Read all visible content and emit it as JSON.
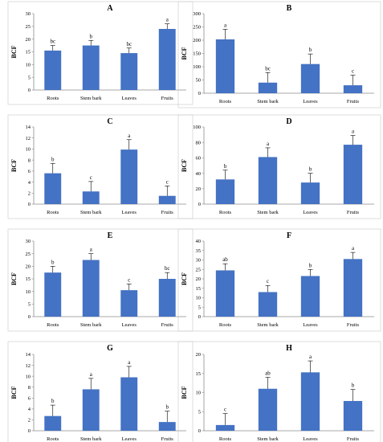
{
  "colors": {
    "bar": "#4472c4",
    "axis": "#8c8c8c",
    "frame": "#c8c8c8"
  },
  "chart_data": [
    {
      "type": "bar",
      "title": "A",
      "ylabel": "BCF",
      "ylim": [
        0,
        30
      ],
      "yticks": [
        0,
        5,
        10,
        15,
        20,
        25,
        30
      ],
      "categories": [
        "Roots",
        "Stem bark",
        "Leaves",
        "Fruits"
      ],
      "values": [
        15.5,
        17.5,
        14.5,
        24
      ],
      "errors": [
        2,
        2,
        2,
        2
      ],
      "letters": [
        "bc",
        "b",
        "bc",
        "a"
      ]
    },
    {
      "type": "bar",
      "title": "B",
      "ylabel": "BCF",
      "ylim": [
        0,
        300
      ],
      "yticks": [
        0,
        50,
        100,
        150,
        200,
        250,
        300
      ],
      "categories": [
        "Roots",
        "Stem bark",
        "Leaves",
        "Fruits"
      ],
      "values": [
        203,
        40,
        110,
        30
      ],
      "errors": [
        38,
        38,
        38,
        38
      ],
      "letters": [
        "a",
        "bc",
        "b",
        "c"
      ]
    },
    {
      "type": "bar",
      "title": "C",
      "ylabel": "BCF",
      "ylim": [
        0,
        14
      ],
      "yticks": [
        0,
        2,
        4,
        6,
        8,
        10,
        12,
        14
      ],
      "categories": [
        "Roots",
        "Stem bark",
        "Leaves",
        "Fruits"
      ],
      "values": [
        5.6,
        2.3,
        9.9,
        1.5
      ],
      "errors": [
        1.8,
        1.8,
        1.8,
        1.8
      ],
      "letters": [
        "b",
        "c",
        "a",
        "c"
      ]
    },
    {
      "type": "bar",
      "title": "D",
      "ylabel": "BCF",
      "ylim": [
        0,
        100
      ],
      "yticks": [
        0,
        20,
        40,
        60,
        80,
        100
      ],
      "categories": [
        "Roots",
        "Stem bark",
        "Leaves",
        "Fruits"
      ],
      "values": [
        32,
        61,
        28,
        77
      ],
      "errors": [
        12,
        12,
        12,
        12
      ],
      "letters": [
        "b",
        "a",
        "b",
        "a"
      ]
    },
    {
      "type": "bar",
      "title": "E",
      "ylabel": "BCF",
      "ylim": [
        0,
        30
      ],
      "yticks": [
        0,
        5,
        10,
        15,
        20,
        25,
        30
      ],
      "categories": [
        "Roots",
        "Stem bark",
        "Leaves",
        "Fruits"
      ],
      "values": [
        17.5,
        22.5,
        10.5,
        15
      ],
      "errors": [
        2.5,
        2.5,
        2.5,
        2.5
      ],
      "letters": [
        "b",
        "a",
        "c",
        "bc"
      ]
    },
    {
      "type": "bar",
      "title": "F",
      "ylabel": "BCF",
      "ylim": [
        0,
        40
      ],
      "yticks": [
        0,
        5,
        10,
        15,
        20,
        25,
        30,
        35,
        40
      ],
      "categories": [
        "Roots",
        "Stem bark",
        "Leaves",
        "Fruits"
      ],
      "values": [
        24.5,
        13,
        21.5,
        30.5
      ],
      "errors": [
        3.5,
        3.5,
        3.5,
        3.5
      ],
      "letters": [
        "ab",
        "c",
        "b",
        "a"
      ]
    },
    {
      "type": "bar",
      "title": "G",
      "ylabel": "BCF",
      "ylim": [
        0,
        14
      ],
      "yticks": [
        0,
        2,
        4,
        6,
        8,
        10,
        12,
        14
      ],
      "categories": [
        "Roots",
        "Stem bark",
        "Leaves",
        "Fruits"
      ],
      "values": [
        2.7,
        7.6,
        9.8,
        1.6
      ],
      "errors": [
        2,
        2,
        2,
        2
      ],
      "letters": [
        "b",
        "a",
        "a",
        "b"
      ]
    },
    {
      "type": "bar",
      "title": "H",
      "ylabel": "BCF",
      "ylim": [
        0,
        20
      ],
      "yticks": [
        0,
        5,
        10,
        15,
        20
      ],
      "categories": [
        "Roots",
        "Stem bark",
        "Leaves",
        "Fruits"
      ],
      "values": [
        1.5,
        11,
        15.3,
        7.8
      ],
      "errors": [
        3,
        3,
        3,
        3
      ],
      "letters": [
        "c",
        "ab",
        "a",
        "b"
      ]
    }
  ]
}
